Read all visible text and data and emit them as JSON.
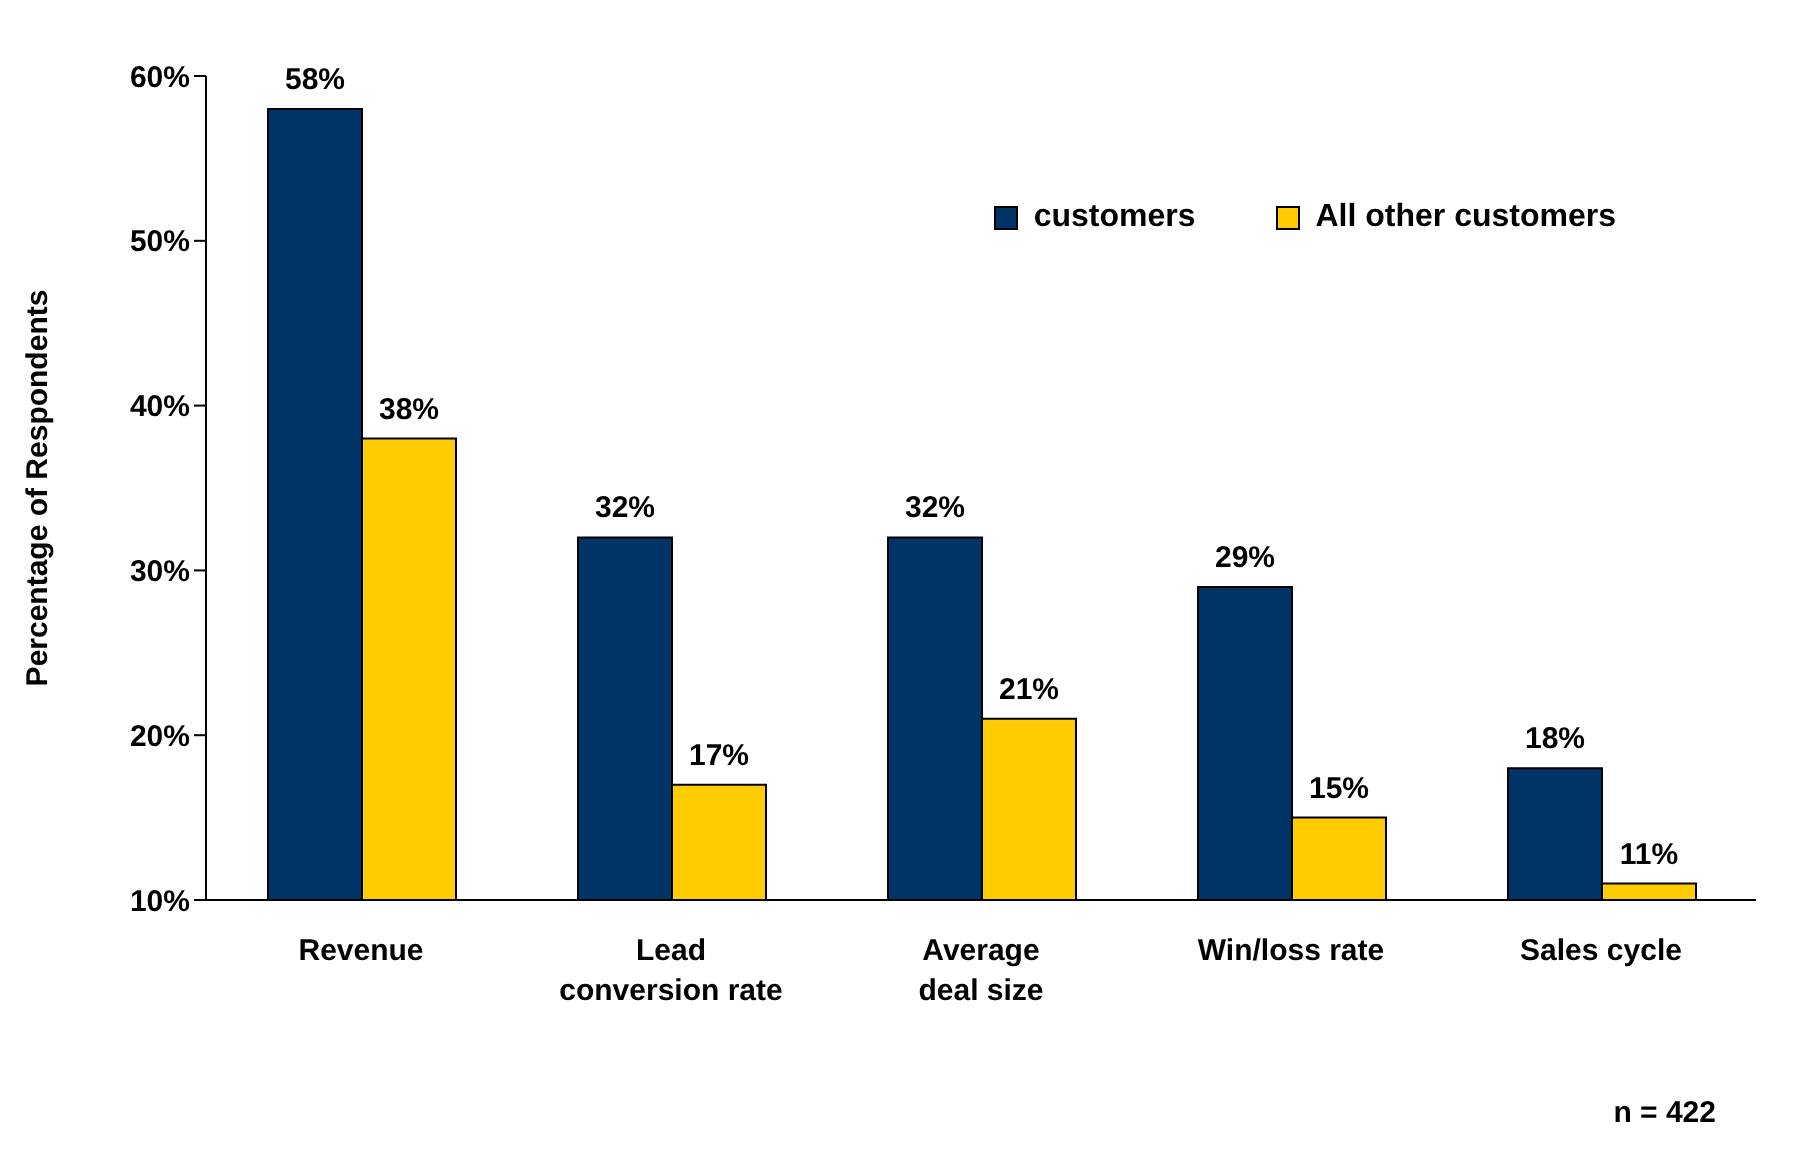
{
  "chart_data": {
    "type": "bar",
    "ylabel": "Percentage of Respondents",
    "categories": [
      "Revenue",
      "Lead conversion rate",
      "Average deal size",
      "Win/loss rate",
      "Sales cycle"
    ],
    "series": [
      {
        "name": "customers",
        "color": "#003366",
        "values": [
          58,
          32,
          32,
          29,
          18
        ],
        "value_labels": [
          "58%",
          "32%",
          "32%",
          "29%",
          "18%"
        ]
      },
      {
        "name": "All other customers",
        "color": "#ffcc00",
        "values": [
          38,
          17,
          21,
          15,
          11
        ],
        "value_labels": [
          "38%",
          "17%",
          "21%",
          "15%",
          "11%"
        ]
      }
    ],
    "ylim": [
      10,
      60
    ],
    "yticks": [
      {
        "value": 10,
        "label": "10%"
      },
      {
        "value": 20,
        "label": "20%"
      },
      {
        "value": 30,
        "label": "30%"
      },
      {
        "value": 40,
        "label": "40%"
      },
      {
        "value": 50,
        "label": "50%"
      },
      {
        "value": 60,
        "label": "60%"
      }
    ],
    "grid": false,
    "legend": "top right",
    "annotations": [
      "n = 422"
    ]
  }
}
